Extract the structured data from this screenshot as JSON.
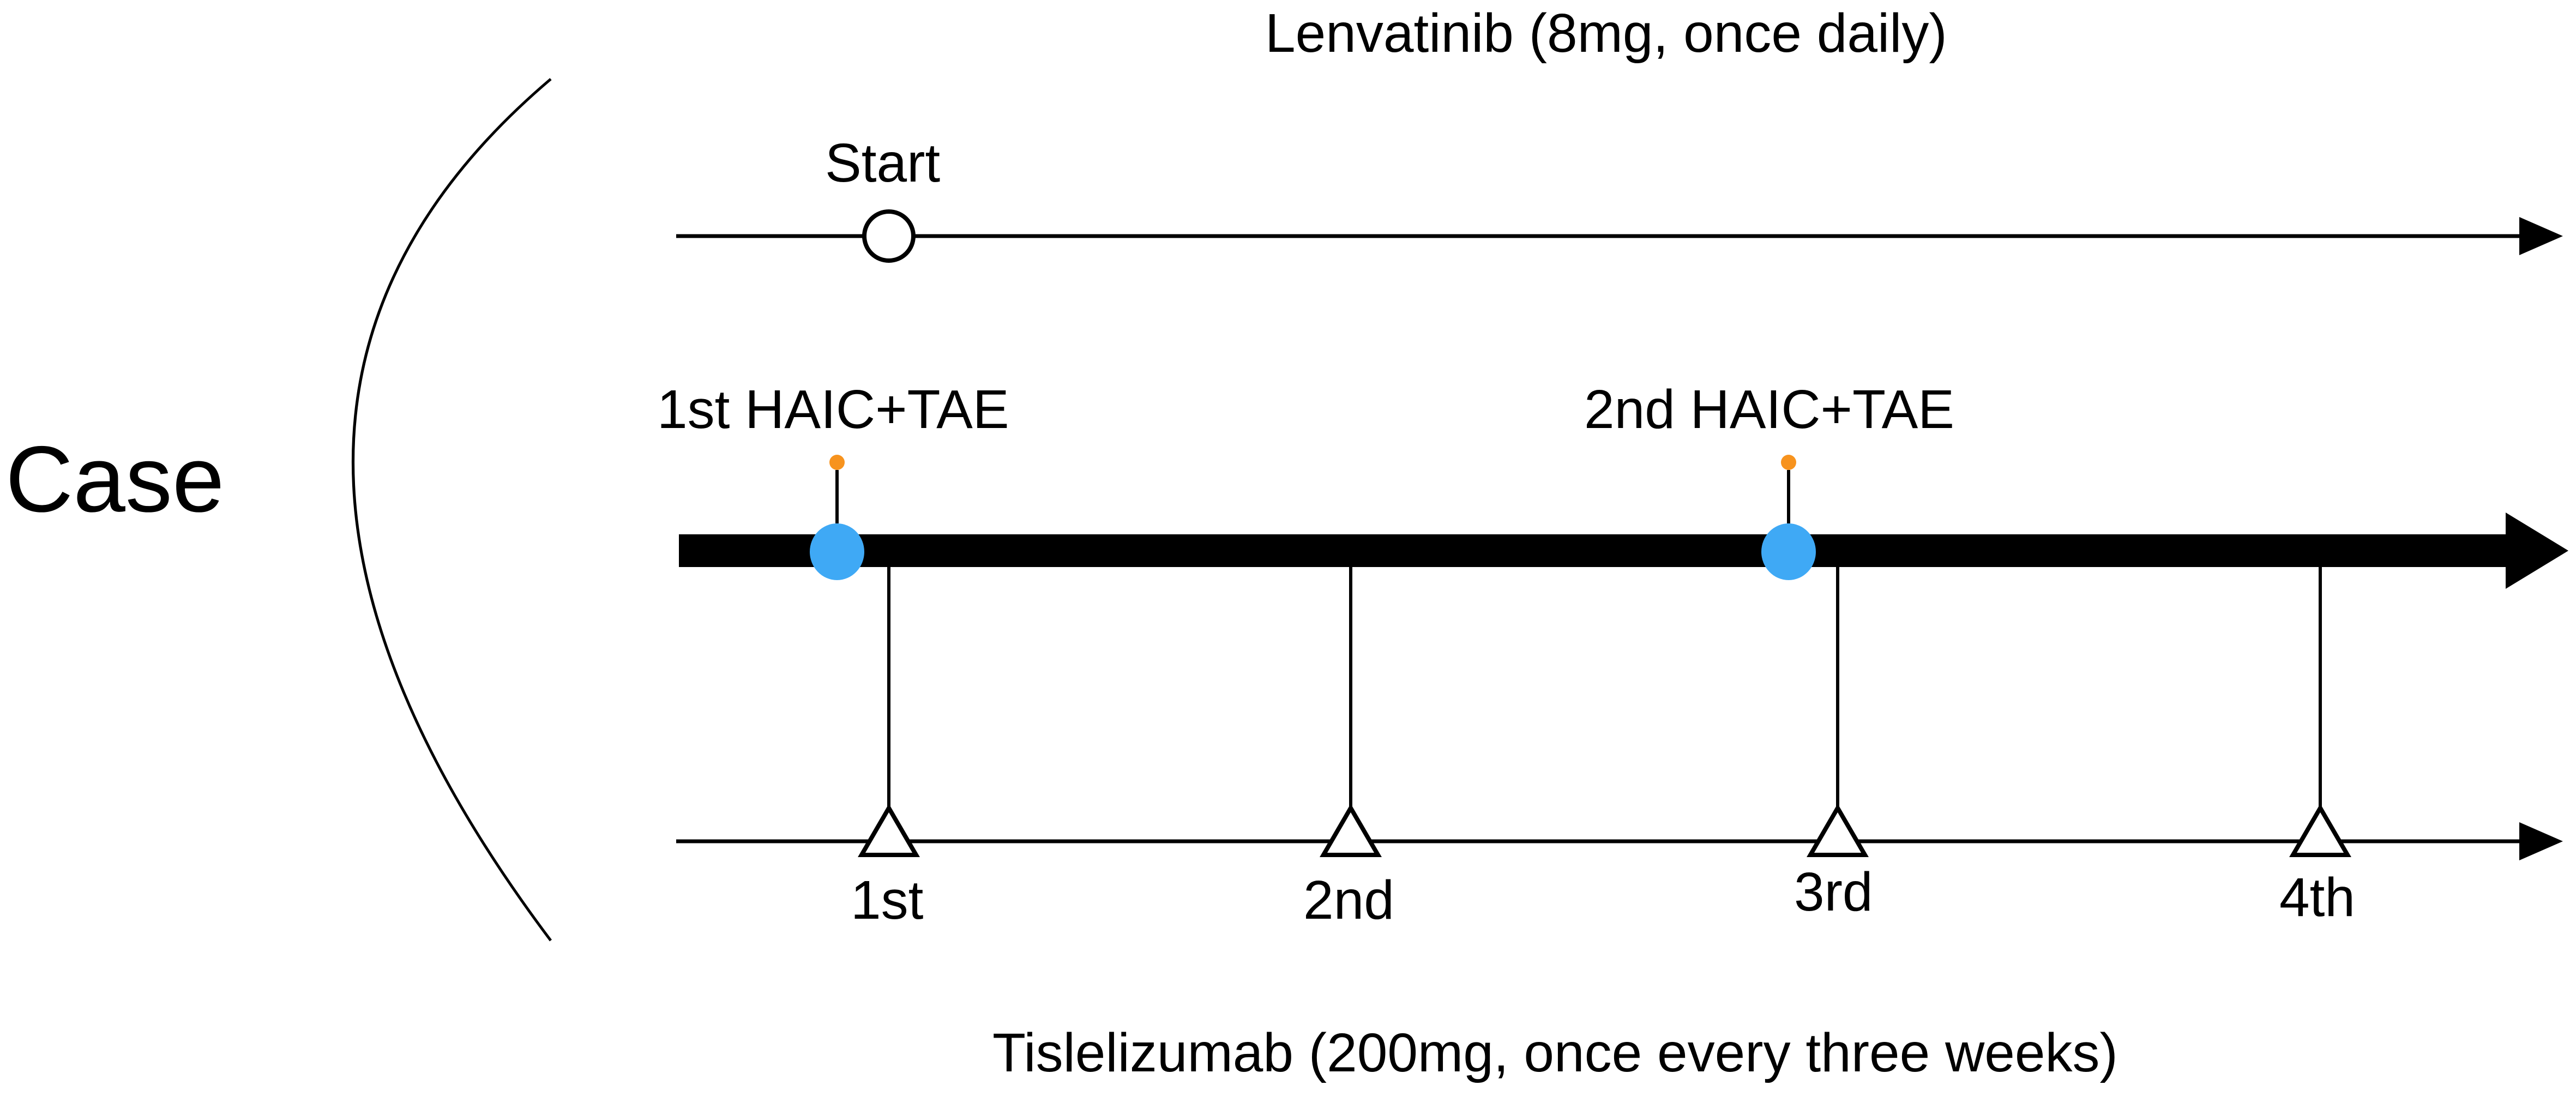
{
  "case_label": "Case",
  "lenvatinib": {
    "title": "Lenvatinib (8mg, once daily)",
    "start_label": "Start"
  },
  "procedures": {
    "events": [
      {
        "label": "1st HAIC+TAE"
      },
      {
        "label": "2nd HAIC+TAE"
      }
    ]
  },
  "tislelizumab": {
    "title": "Tislelizumab (200mg, once every three weeks)",
    "doses": [
      {
        "label": "1st"
      },
      {
        "label": "2nd"
      },
      {
        "label": "3rd"
      },
      {
        "label": "4th"
      }
    ]
  },
  "colors": {
    "line": "#000000",
    "procedure_marker": "#3fa9f5",
    "procedure_dot": "#f7931e",
    "background": "#ffffff"
  }
}
